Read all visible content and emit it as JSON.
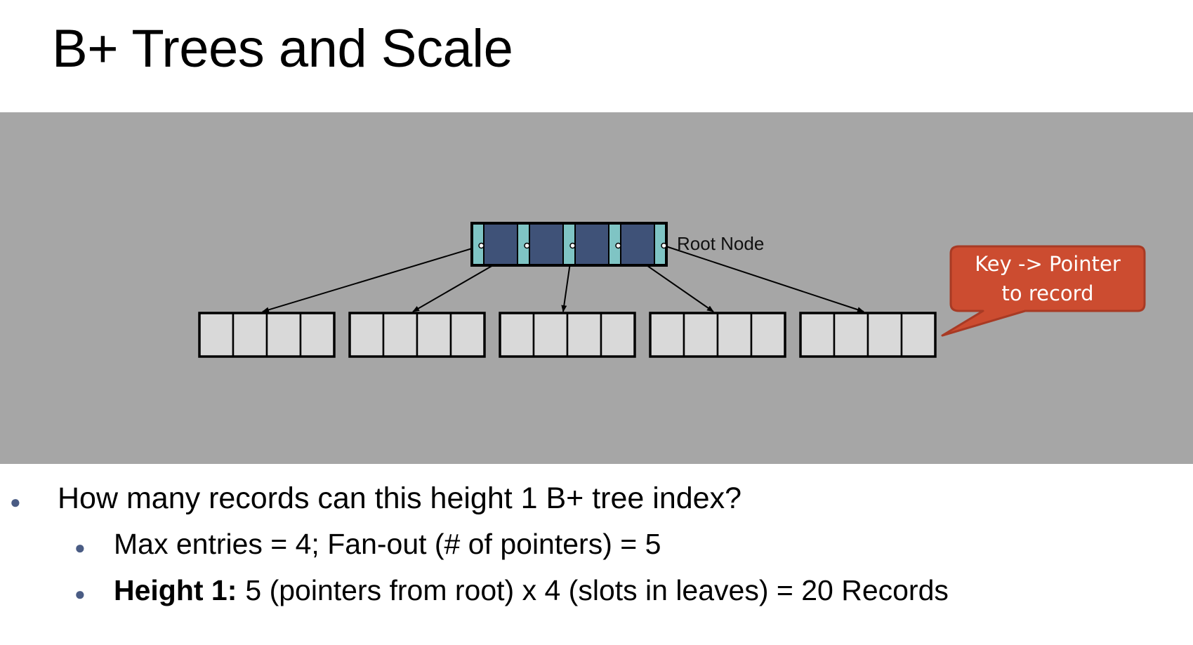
{
  "title": "B+ Trees and Scale",
  "diagram": {
    "root_label": "Root Node",
    "callout_lines": [
      "Key -> Pointer",
      "to record"
    ],
    "root_entries": 4,
    "root_pointers": 5,
    "leaf_count": 5,
    "slots_per_leaf": 4,
    "colors": {
      "panel": "#a6a6a6",
      "root_key": "#3f5278",
      "root_pointer": "#7fc4c4",
      "leaf_slot": "#d9d9d9",
      "callout_fill": "#cc4c30",
      "callout_border": "#a83a24",
      "bullet": "#4a5c84"
    }
  },
  "bullets": [
    {
      "text": "How many records can this height 1 B+ tree index?"
    },
    {
      "text": "Max entries = 4; Fan-out (# of pointers) = 5"
    },
    {
      "bold": "Height 1:",
      "text": "5 (pointers from root) x 4 (slots in leaves) = 20 Records"
    }
  ]
}
